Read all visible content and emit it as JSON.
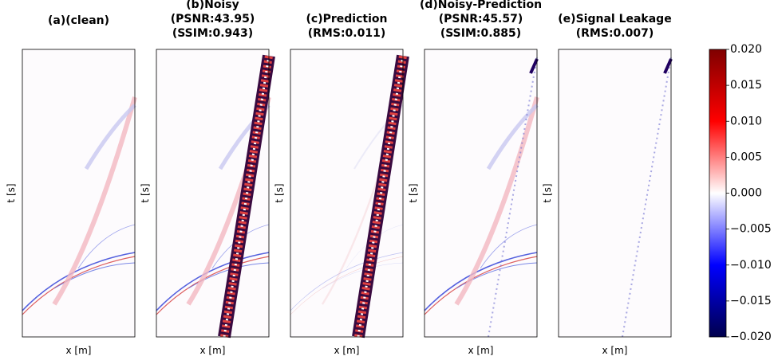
{
  "panels": [
    {
      "title": [
        "(a)(clean)"
      ],
      "xlabel": "x [m]",
      "ylabel": "t [s]"
    },
    {
      "title": [
        "(b)Noisy",
        "(PSNR:43.95)",
        "(SSIM:0.943)"
      ],
      "xlabel": "x [m]",
      "ylabel": "t [s]"
    },
    {
      "title": [
        "(c)Prediction",
        "(RMS:0.011)"
      ],
      "xlabel": "x [m]",
      "ylabel": "t [s]"
    },
    {
      "title": [
        "(d)Noisy-Prediction",
        "(PSNR:45.57)",
        "(SSIM:0.885)"
      ],
      "xlabel": "x [m]",
      "ylabel": "t [s]"
    },
    {
      "title": [
        "(e)Signal Leakage",
        "(RMS:0.007)"
      ],
      "xlabel": "x [m]",
      "ylabel": "t [s]"
    }
  ],
  "colorbar": {
    "lim": [
      -0.02,
      0.02
    ],
    "ticks": [
      {
        "value": 0.02,
        "label": "0.020"
      },
      {
        "value": 0.015,
        "label": "0.015"
      },
      {
        "value": 0.01,
        "label": "0.010"
      },
      {
        "value": 0.005,
        "label": "0.005"
      },
      {
        "value": 0,
        "label": "0.000"
      },
      {
        "value": -0.005,
        "label": "−0.005"
      },
      {
        "value": -0.01,
        "label": "−0.010"
      },
      {
        "value": -0.015,
        "label": "−0.015"
      },
      {
        "value": -0.02,
        "label": "−0.020"
      }
    ]
  }
}
